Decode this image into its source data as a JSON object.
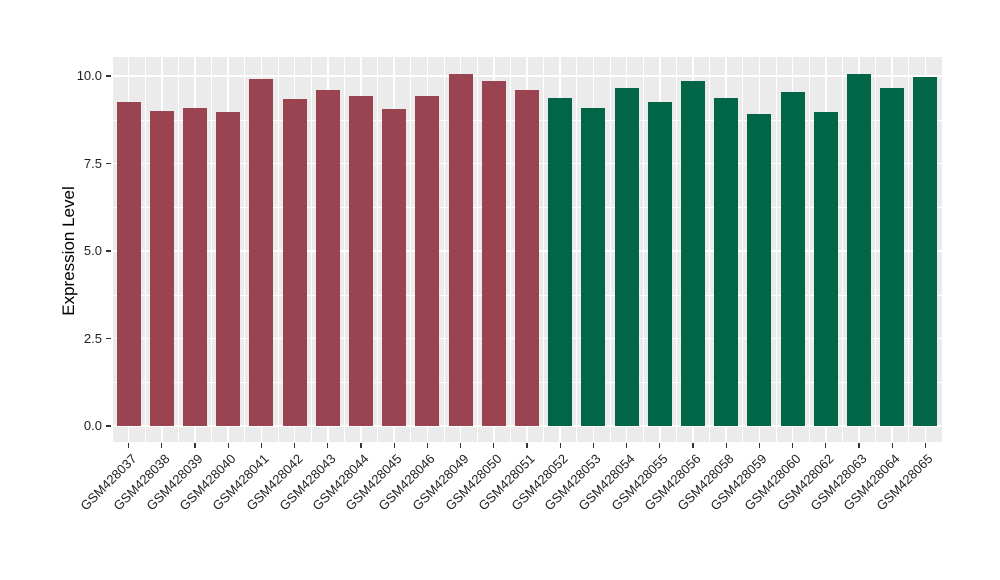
{
  "chart_data": {
    "type": "bar",
    "title": "",
    "xlabel": "",
    "ylabel": "Expression Level",
    "ylim": [
      0,
      10.5
    ],
    "y_tick_labels": [
      "0.0",
      "2.5",
      "5.0",
      "7.5",
      "10.0"
    ],
    "y_minor_gridlines": [
      1.25,
      3.75,
      6.25,
      8.75
    ],
    "grid": true,
    "legend_position": "none",
    "panel_background": "#EBEBEB",
    "gridline_color": "#FFFFFF",
    "axis_text_color": "#1F1F1F",
    "bar_group_colors": {
      "left_group": "#9A4452",
      "right_group": "#006647"
    },
    "bars": [
      {
        "label": "GSM428037",
        "value": 9.27,
        "color": "#9A4452"
      },
      {
        "label": "GSM428038",
        "value": 9.01,
        "color": "#9A4452"
      },
      {
        "label": "GSM428039",
        "value": 9.09,
        "color": "#9A4452"
      },
      {
        "label": "GSM428040",
        "value": 8.98,
        "color": "#9A4452"
      },
      {
        "label": "GSM428041",
        "value": 9.91,
        "color": "#9A4452"
      },
      {
        "label": "GSM428042",
        "value": 9.34,
        "color": "#9A4452"
      },
      {
        "label": "GSM428043",
        "value": 9.6,
        "color": "#9A4452"
      },
      {
        "label": "GSM428044",
        "value": 9.44,
        "color": "#9A4452"
      },
      {
        "label": "GSM428045",
        "value": 9.06,
        "color": "#9A4452"
      },
      {
        "label": "GSM428046",
        "value": 9.44,
        "color": "#9A4452"
      },
      {
        "label": "GSM428049",
        "value": 10.05,
        "color": "#9A4452"
      },
      {
        "label": "GSM428050",
        "value": 9.87,
        "color": "#9A4452"
      },
      {
        "label": "GSM428051",
        "value": 9.6,
        "color": "#9A4452"
      },
      {
        "label": "GSM428052",
        "value": 9.38,
        "color": "#006647"
      },
      {
        "label": "GSM428053",
        "value": 9.09,
        "color": "#006647"
      },
      {
        "label": "GSM428054",
        "value": 9.65,
        "color": "#006647"
      },
      {
        "label": "GSM428055",
        "value": 9.27,
        "color": "#006647"
      },
      {
        "label": "GSM428056",
        "value": 9.87,
        "color": "#006647"
      },
      {
        "label": "GSM428058",
        "value": 9.36,
        "color": "#006647"
      },
      {
        "label": "GSM428059",
        "value": 8.91,
        "color": "#006647"
      },
      {
        "label": "GSM428060",
        "value": 9.55,
        "color": "#006647"
      },
      {
        "label": "GSM428062",
        "value": 8.98,
        "color": "#006647"
      },
      {
        "label": "GSM428063",
        "value": 10.06,
        "color": "#006647"
      },
      {
        "label": "GSM428064",
        "value": 9.67,
        "color": "#006647"
      },
      {
        "label": "GSM428065",
        "value": 9.98,
        "color": "#006647"
      }
    ]
  }
}
